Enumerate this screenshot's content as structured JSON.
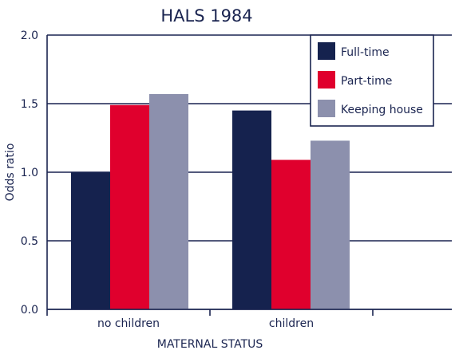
{
  "chart_data": {
    "type": "bar",
    "title": "HALS 1984",
    "xlabel": "MATERNAL STATUS",
    "ylabel": "Odds ratio",
    "categories": [
      "no children",
      "children"
    ],
    "series": [
      {
        "name": "Full-time",
        "values": [
          1.0,
          1.45
        ],
        "color": "#15224e"
      },
      {
        "name": "Part-time",
        "values": [
          1.49,
          1.09
        ],
        "color": "#e0002d"
      },
      {
        "name": "Keeping house",
        "values": [
          1.57,
          1.23
        ],
        "color": "#8c90ad"
      }
    ],
    "ylim": [
      0,
      2.0
    ],
    "yticks": [
      "0.0",
      "0.5",
      "1.0",
      "1.5",
      "2.0"
    ],
    "grid": true,
    "legend_position": "top-right"
  }
}
